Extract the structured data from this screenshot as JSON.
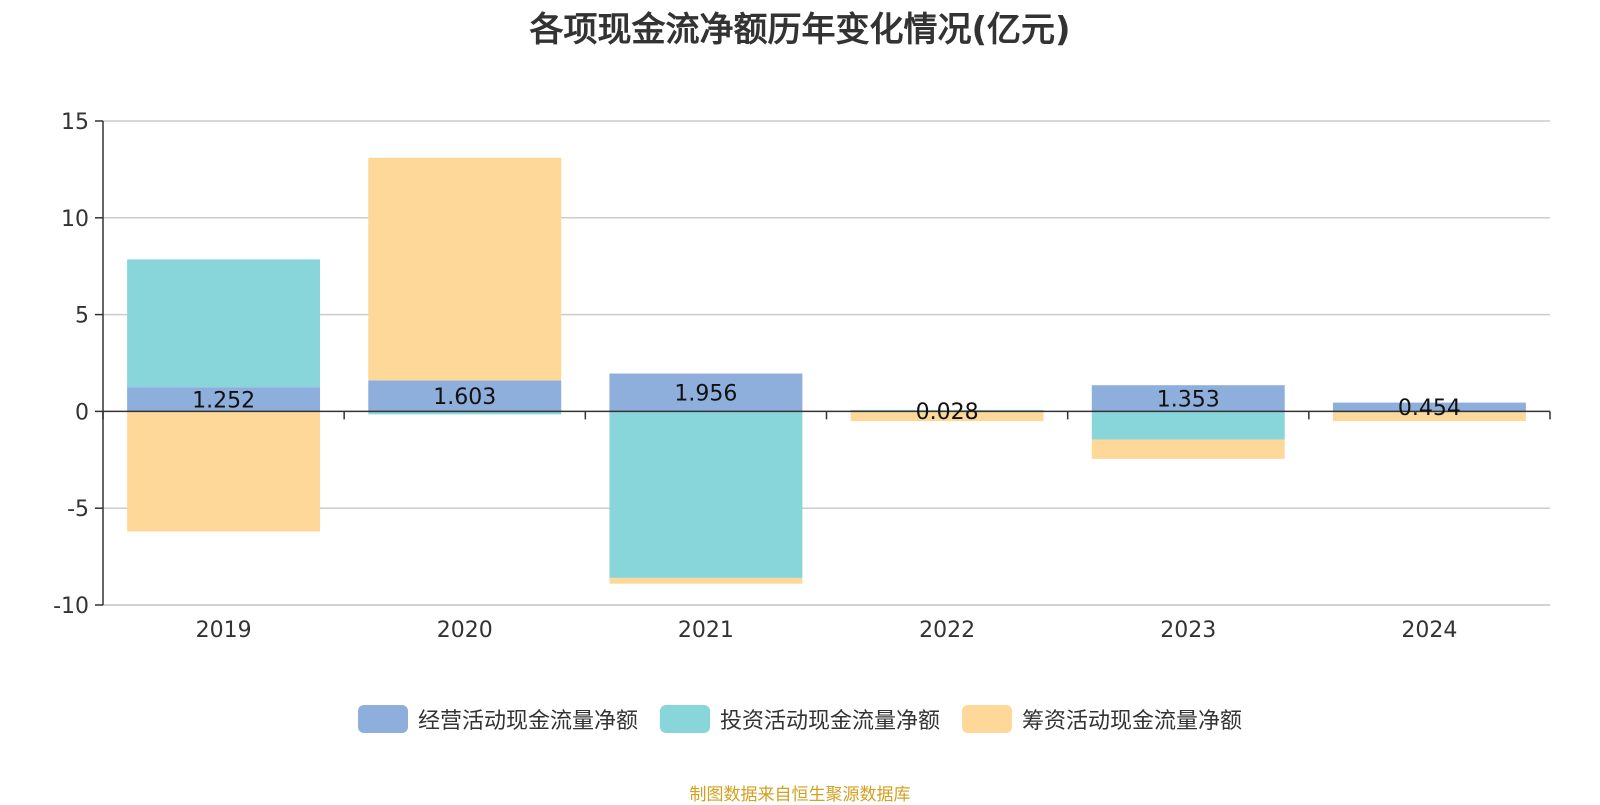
{
  "chart_data": {
    "type": "bar",
    "stacked": true,
    "title": "各项现金流净额历年变化情况(亿元)",
    "categories": [
      "2019",
      "2020",
      "2021",
      "2022",
      "2023",
      "2024"
    ],
    "ylim": [
      -10,
      15
    ],
    "yticks": [
      15,
      10,
      5,
      0,
      -5,
      -10
    ],
    "grid": true,
    "legend_position": "bottom",
    "series": [
      {
        "name": "经营活动现金流量净额",
        "color": "#8eaedc",
        "values": [
          1.252,
          1.603,
          1.956,
          0.028,
          1.353,
          0.454
        ],
        "labels": [
          "1.252",
          "1.603",
          "1.956",
          "0.028",
          "1.353",
          "0.454"
        ]
      },
      {
        "name": "投资活动现金流量净额",
        "color": "#88d6d9",
        "values": [
          6.6,
          -0.15,
          -8.6,
          0.05,
          -1.45,
          -0.05
        ]
      },
      {
        "name": "筹资活动现金流量净额",
        "color": "#fed899",
        "values": [
          -6.2,
          11.5,
          -0.3,
          -0.5,
          -1.0,
          -0.45
        ]
      }
    ]
  },
  "source_note": "制图数据来自恒生聚源数据库"
}
